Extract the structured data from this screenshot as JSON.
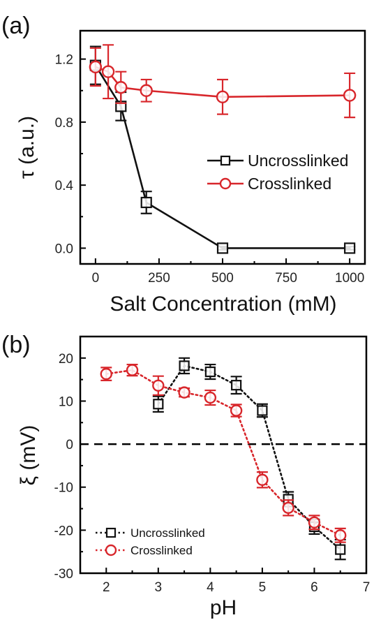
{
  "chart_data": [
    {
      "panel_label": "(a)",
      "type": "line",
      "xlabel": "Salt Concentration (mM)",
      "ylabel": "τ (a.u.)",
      "xlim": [
        -60,
        1060
      ],
      "ylim": [
        -0.1,
        1.38
      ],
      "xticks": [
        0,
        250,
        500,
        750,
        1000
      ],
      "xtick_labels": [
        "0",
        "250",
        "500",
        "750",
        "1000"
      ],
      "yticks": [
        0.0,
        0.4,
        0.8,
        1.2
      ],
      "ytick_labels": [
        "0.0",
        "0.4",
        "0.8",
        "1.2"
      ],
      "legend_position": "center-right",
      "series": [
        {
          "name": "Uncrosslinked",
          "color": "#111111",
          "marker": "square",
          "line": "solid",
          "x": [
            0,
            100,
            200,
            500,
            1000
          ],
          "y": [
            1.16,
            0.9,
            0.29,
            0.0,
            0.0
          ],
          "err": [
            0.12,
            0.09,
            0.07,
            0.01,
            0.01
          ]
        },
        {
          "name": "Crosslinked",
          "color": "#d8262b",
          "marker": "circle",
          "line": "solid",
          "x": [
            0,
            50,
            100,
            200,
            500,
            1000
          ],
          "y": [
            1.15,
            1.12,
            1.02,
            1.0,
            0.96,
            0.97
          ],
          "err": [
            0.12,
            0.17,
            0.1,
            0.07,
            0.11,
            0.14
          ]
        }
      ]
    },
    {
      "panel_label": "(b)",
      "type": "line",
      "xlabel": "pH",
      "ylabel": "ξ (mV)",
      "xlim": [
        1.5,
        7
      ],
      "ylim": [
        -30,
        25
      ],
      "xticks": [
        2,
        3,
        4,
        5,
        6,
        7
      ],
      "xtick_labels": [
        "2",
        "3",
        "4",
        "5",
        "6",
        "7"
      ],
      "yticks": [
        -30,
        -20,
        -10,
        0,
        10,
        20
      ],
      "ytick_labels": [
        "-30",
        "-20",
        "-10",
        "0",
        "10",
        "20"
      ],
      "reference_line_y": 0,
      "legend_position": "bottom-left",
      "series": [
        {
          "name": "Uncrosslinked",
          "color": "#111111",
          "marker": "square",
          "line": "dotted",
          "x": [
            3,
            3.5,
            4,
            4.5,
            5,
            5.5,
            6,
            6.5
          ],
          "y": [
            9.3,
            18.2,
            16.8,
            13.7,
            7.8,
            -12.8,
            -19.2,
            -24.5
          ],
          "err": [
            1.8,
            1.8,
            1.7,
            2.0,
            1.5,
            1.7,
            1.7,
            2.3
          ]
        },
        {
          "name": "Crosslinked",
          "color": "#d8262b",
          "marker": "circle",
          "line": "dotted",
          "x": [
            2,
            2.5,
            3,
            3.5,
            4,
            4.5,
            5,
            5.5,
            6,
            6.5
          ],
          "y": [
            16.3,
            17.2,
            13.6,
            12.0,
            10.8,
            7.8,
            -8.3,
            -14.8,
            -18.2,
            -21.2
          ],
          "err": [
            1.5,
            1.3,
            2.2,
            1.0,
            1.7,
            1.4,
            1.8,
            1.8,
            1.6,
            1.6
          ]
        }
      ]
    }
  ]
}
